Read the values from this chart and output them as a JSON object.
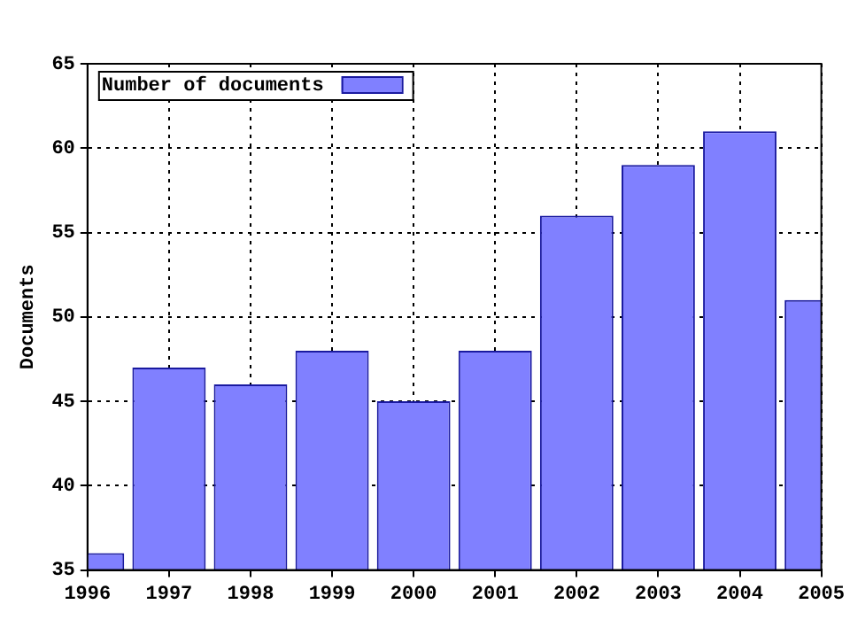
{
  "chart_data": {
    "type": "bar",
    "ylabel": "Documents",
    "x": [
      1996,
      1997,
      1998,
      1999,
      2000,
      2001,
      2002,
      2003,
      2004,
      2005
    ],
    "series": [
      {
        "name": "Number of documents",
        "color": "#8080ff",
        "values": [
          36,
          47,
          46,
          48,
          45,
          48,
          56,
          59,
          61,
          51
        ]
      }
    ],
    "xlim": [
      1996,
      2005
    ],
    "xticks": [
      1996,
      1997,
      1998,
      1999,
      2000,
      2001,
      2002,
      2003,
      2004,
      2005
    ],
    "ylim": [
      35,
      65
    ],
    "yticks": [
      35,
      40,
      45,
      50,
      55,
      60,
      65
    ],
    "grid": true,
    "legend": "top left"
  }
}
